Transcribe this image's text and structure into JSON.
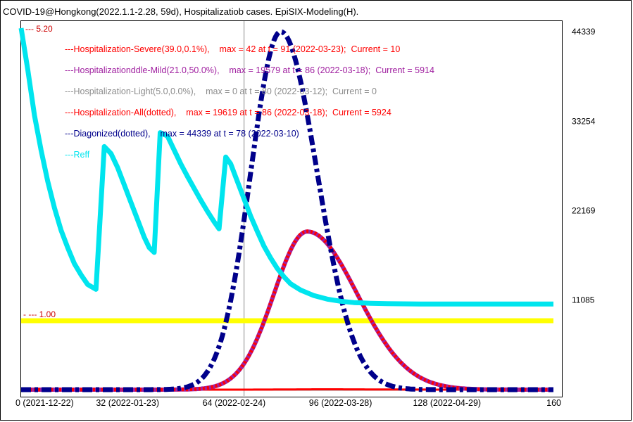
{
  "chart_data": {
    "type": "line",
    "title": "COVID-19@Hongkong(2022.1.1-2.28, 59d), Hospitalizatiob cases. EpiSIX-Modeling(H).",
    "xlim": [
      0,
      160
    ],
    "x_ticks": [
      {
        "value": 0,
        "label": "0 (2021-12-22)"
      },
      {
        "value": 32,
        "label": "32 (2022-01-23)"
      },
      {
        "value": 64,
        "label": "64 (2022-02-24)"
      },
      {
        "value": 96,
        "label": "96 (2022-03-28)"
      },
      {
        "value": 128,
        "label": "128 (2022-04-29)"
      },
      {
        "value": 160,
        "label": "160"
      }
    ],
    "right_axis": {
      "ylim": [
        0,
        44339
      ],
      "ticks": [
        {
          "value": 44339,
          "label": "44339"
        },
        {
          "value": 33254,
          "label": "33254"
        },
        {
          "value": 22169,
          "label": "22169"
        },
        {
          "value": 11085,
          "label": "11085"
        }
      ]
    },
    "left_axis": {
      "ylim": [
        0,
        5.2
      ],
      "ticks": [
        {
          "value": 5.2,
          "label": "--- 5.20"
        },
        {
          "value": 1.0,
          "label": "- --- 1.00"
        }
      ]
    },
    "current_day": 67,
    "legend": [
      {
        "text": "---Hospitalization-Severe(39.0,0.1%),    max = 42 at t = 91 (2022-03-23);  Current = 10",
        "color": "#ff0000"
      },
      {
        "text": "---Hospitalizationddle-Mild(21.0,50.0%),    max = 19579 at t = 86 (2022-03-18);  Current = 5914",
        "color": "#a020a0"
      },
      {
        "text": "---Hospitalization-Light(5.0,0.0%),    max = 0 at t = 80 (2022-03-12);  Current = 0",
        "color": "#8c8c8c"
      },
      {
        "text": "---Hospitalization-All(dotted),    max = 19619 at t = 86 (2022-03-18);  Current = 5924",
        "color": "#ff0000"
      },
      {
        "text": "---Diagonized(dotted),    max = 44339 at t = 78 (2022-03-10)",
        "color": "#00008b"
      },
      {
        "text": "---Reff",
        "color": "#00e5ee"
      }
    ],
    "series": [
      {
        "name": "Diagonized",
        "axis": "right",
        "color": "#00008b",
        "style": "dashdot",
        "peak_t": 78,
        "peak": 44339,
        "sigma_left": 9,
        "sigma_right": 11
      },
      {
        "name": "Hospitalization-Mild",
        "axis": "right",
        "color": "#a020a0",
        "style": "solid",
        "peak_t": 86,
        "peak": 19579,
        "sigma_left": 10,
        "sigma_right": 15
      },
      {
        "name": "Hospitalization-All",
        "axis": "right",
        "color": "#ff0000",
        "style": "dotted",
        "peak_t": 86,
        "peak": 19619,
        "sigma_left": 10,
        "sigma_right": 15
      },
      {
        "name": "Hospitalization-Severe",
        "axis": "right",
        "color": "#ff0000",
        "style": "solid",
        "peak_t": 91,
        "peak": 42,
        "sigma_left": 10,
        "sigma_right": 15
      },
      {
        "name": "Hospitalization-Light",
        "axis": "right",
        "color": "#8c8c8c",
        "style": "solid",
        "peak_t": 80,
        "peak": 0,
        "sigma_left": 10,
        "sigma_right": 15
      }
    ],
    "reff": {
      "name": "Reff",
      "color": "#00e5ee",
      "axis": "left",
      "points": [
        [
          0,
          5.2
        ],
        [
          2,
          4.6
        ],
        [
          4,
          3.95
        ],
        [
          6,
          3.45
        ],
        [
          8,
          3.0
        ],
        [
          10,
          2.62
        ],
        [
          12,
          2.3
        ],
        [
          14,
          2.05
        ],
        [
          16,
          1.82
        ],
        [
          18,
          1.66
        ],
        [
          20,
          1.52
        ],
        [
          22.5,
          1.45
        ],
        [
          25,
          3.5
        ],
        [
          27,
          3.4
        ],
        [
          29,
          3.2
        ],
        [
          31,
          2.95
        ],
        [
          33,
          2.7
        ],
        [
          35,
          2.45
        ],
        [
          37,
          2.2
        ],
        [
          38.5,
          2.05
        ],
        [
          40,
          1.98
        ],
        [
          41.8,
          3.7
        ],
        [
          44,
          3.65
        ],
        [
          46,
          3.45
        ],
        [
          48,
          3.25
        ],
        [
          50,
          3.07
        ],
        [
          52,
          2.9
        ],
        [
          54,
          2.73
        ],
        [
          56,
          2.57
        ],
        [
          58,
          2.42
        ],
        [
          59.5,
          2.32
        ],
        [
          61.5,
          3.35
        ],
        [
          63,
          3.25
        ],
        [
          65,
          3.0
        ],
        [
          67,
          2.75
        ],
        [
          69,
          2.5
        ],
        [
          71,
          2.28
        ],
        [
          73,
          2.07
        ],
        [
          75,
          1.9
        ],
        [
          77,
          1.75
        ],
        [
          79,
          1.63
        ],
        [
          81,
          1.53
        ],
        [
          84,
          1.44
        ],
        [
          88,
          1.36
        ],
        [
          92,
          1.31
        ],
        [
          96,
          1.28
        ],
        [
          100,
          1.26
        ],
        [
          105,
          1.25
        ],
        [
          110,
          1.245
        ],
        [
          120,
          1.24
        ],
        [
          140,
          1.24
        ],
        [
          160,
          1.24
        ]
      ]
    },
    "threshold": {
      "name": "Reff = 1.00",
      "value": 1.0,
      "color": "#ffff00"
    },
    "floor_line": {
      "color": "#8b0000"
    }
  }
}
